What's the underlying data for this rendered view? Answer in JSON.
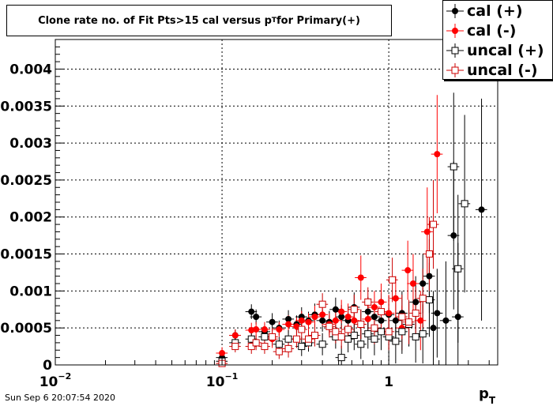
{
  "chart_data": {
    "type": "scatter",
    "title": "Clone rate no. of Fit Pts>15 cal versus p",
    "title_sub": "T",
    "title_tail": " for Primary(+)",
    "xlabel": "p",
    "xlabel_sub": "T",
    "x_scale": "log",
    "xlim": [
      0.01,
      4.5
    ],
    "ylim": [
      0,
      0.0044
    ],
    "grid": true,
    "legend_placement": "top-right",
    "x_tick_labels": [
      {
        "value": 0.01,
        "base": "10",
        "exp": "−2"
      },
      {
        "value": 0.1,
        "base": "10",
        "exp": "−1"
      },
      {
        "value": 1,
        "base": "1",
        "exp": ""
      }
    ],
    "y_tick_labels": [
      {
        "value": 0,
        "label": "0"
      },
      {
        "value": 0.0005,
        "label": "0.0005"
      },
      {
        "value": 0.001,
        "label": "0.001"
      },
      {
        "value": 0.0015,
        "label": "0.0015"
      },
      {
        "value": 0.002,
        "label": "0.002"
      },
      {
        "value": 0.0025,
        "label": "0.0025"
      },
      {
        "value": 0.003,
        "label": "0.003"
      },
      {
        "value": 0.0035,
        "label": "0.0035"
      },
      {
        "value": 0.004,
        "label": "0.004"
      }
    ],
    "series": [
      {
        "name": "cal (+)",
        "color": "#000000",
        "marker": "filled-circle",
        "points": [
          [
            0.1,
            0.0001,
            8e-05
          ],
          [
            0.12,
            0.0004,
            8e-05
          ],
          [
            0.15,
            0.00072,
            0.0001
          ],
          [
            0.16,
            0.00065,
            0.0001
          ],
          [
            0.18,
            0.00045,
            0.0001
          ],
          [
            0.2,
            0.00058,
            0.00012
          ],
          [
            0.22,
            0.0005,
            0.0001
          ],
          [
            0.25,
            0.00062,
            0.00012
          ],
          [
            0.28,
            0.00055,
            0.00012
          ],
          [
            0.3,
            0.00065,
            0.00013
          ],
          [
            0.33,
            0.0006,
            0.00012
          ],
          [
            0.36,
            0.00068,
            0.00015
          ],
          [
            0.4,
            0.0006,
            0.00015
          ],
          [
            0.44,
            0.00058,
            0.00015
          ],
          [
            0.48,
            0.00075,
            0.00016
          ],
          [
            0.52,
            0.00065,
            0.00016
          ],
          [
            0.57,
            0.0006,
            0.00018
          ],
          [
            0.62,
            0.00078,
            0.0002
          ],
          [
            0.68,
            0.00055,
            0.0002
          ],
          [
            0.75,
            0.00072,
            0.0002
          ],
          [
            0.82,
            0.00065,
            0.00022
          ],
          [
            0.9,
            0.0006,
            0.00025
          ],
          [
            1.0,
            0.00068,
            0.00025
          ],
          [
            1.1,
            0.0006,
            0.00028
          ],
          [
            1.2,
            0.0007,
            0.0003
          ],
          [
            1.32,
            0.00055,
            0.0003
          ],
          [
            1.45,
            0.00085,
            0.00035
          ],
          [
            1.6,
            0.0011,
            0.0004
          ],
          [
            1.75,
            0.0012,
            0.0005
          ],
          [
            1.85,
            0.0005,
            0.0005
          ],
          [
            1.95,
            0.0007,
            0.0006
          ],
          [
            2.2,
            0.0006,
            0.0008
          ],
          [
            2.45,
            0.00175,
            0.001
          ],
          [
            2.6,
            0.00065,
            0.001
          ],
          [
            3.6,
            0.0021,
            0.0015
          ]
        ]
      },
      {
        "name": "cal (-)",
        "color": "#ff0000",
        "marker": "filled-circle",
        "points": [
          [
            0.1,
            0.00016,
            8e-05
          ],
          [
            0.12,
            0.0004,
            8e-05
          ],
          [
            0.15,
            0.00047,
            0.0001
          ],
          [
            0.16,
            0.00048,
            0.0001
          ],
          [
            0.18,
            0.00048,
            0.0001
          ],
          [
            0.2,
            0.00035,
            0.00012
          ],
          [
            0.22,
            0.00048,
            0.0001
          ],
          [
            0.25,
            0.00055,
            0.00012
          ],
          [
            0.28,
            0.00052,
            0.00012
          ],
          [
            0.3,
            0.0006,
            0.00013
          ],
          [
            0.33,
            0.00058,
            0.00012
          ],
          [
            0.36,
            0.00065,
            0.00015
          ],
          [
            0.4,
            0.00068,
            0.00015
          ],
          [
            0.44,
            0.00055,
            0.00015
          ],
          [
            0.48,
            0.0006,
            0.00016
          ],
          [
            0.52,
            0.00072,
            0.00016
          ],
          [
            0.57,
            0.00065,
            0.00018
          ],
          [
            0.62,
            0.0006,
            0.0002
          ],
          [
            0.68,
            0.00118,
            0.0003
          ],
          [
            0.75,
            0.00062,
            0.0002
          ],
          [
            0.82,
            0.00078,
            0.00022
          ],
          [
            0.9,
            0.00085,
            0.00025
          ],
          [
            1.0,
            0.0007,
            0.00025
          ],
          [
            1.1,
            0.0009,
            0.0003
          ],
          [
            1.2,
            0.0005,
            0.0003
          ],
          [
            1.3,
            0.00128,
            0.0004
          ],
          [
            1.4,
            0.0011,
            0.0004
          ],
          [
            1.55,
            0.0006,
            0.0004
          ],
          [
            1.7,
            0.0018,
            0.0006
          ],
          [
            1.95,
            0.00285,
            0.0008
          ]
        ]
      },
      {
        "name": "uncal (+)",
        "color": "#000000",
        "marker": "open-square",
        "points": [
          [
            0.1,
            5e-05,
            8e-05
          ],
          [
            0.12,
            0.0003,
            8e-05
          ],
          [
            0.15,
            0.00035,
            0.0001
          ],
          [
            0.18,
            0.00038,
            0.0001
          ],
          [
            0.22,
            0.00028,
            0.0001
          ],
          [
            0.25,
            0.00035,
            0.00012
          ],
          [
            0.3,
            0.00025,
            0.00013
          ],
          [
            0.33,
            0.0003,
            0.00012
          ],
          [
            0.4,
            0.00028,
            0.00015
          ],
          [
            0.48,
            0.00038,
            0.00016
          ],
          [
            0.52,
            0.0001,
            0.00016
          ],
          [
            0.57,
            0.00035,
            0.00018
          ],
          [
            0.62,
            0.0004,
            0.0002
          ],
          [
            0.68,
            0.00028,
            0.0002
          ],
          [
            0.75,
            0.00042,
            0.0002
          ],
          [
            0.82,
            0.00035,
            0.00022
          ],
          [
            0.9,
            0.00045,
            0.00025
          ],
          [
            1.0,
            0.00038,
            0.00025
          ],
          [
            1.1,
            0.00032,
            0.0003
          ],
          [
            1.2,
            0.00045,
            0.0003
          ],
          [
            1.32,
            0.00055,
            0.0003
          ],
          [
            1.45,
            0.00038,
            0.00035
          ],
          [
            1.6,
            0.00042,
            0.0004
          ],
          [
            1.75,
            0.00088,
            0.0005
          ],
          [
            2.45,
            0.00268,
            0.001
          ],
          [
            2.6,
            0.0013,
            0.001
          ],
          [
            2.85,
            0.00218,
            0.0012
          ]
        ]
      },
      {
        "name": "uncal (-)",
        "color": "#cc0000",
        "marker": "open-square",
        "points": [
          [
            0.1,
            2e-05,
            8e-05
          ],
          [
            0.12,
            0.00025,
            8e-05
          ],
          [
            0.15,
            0.00025,
            0.0001
          ],
          [
            0.16,
            0.0003,
            0.0001
          ],
          [
            0.18,
            0.00025,
            0.0001
          ],
          [
            0.2,
            0.00038,
            0.00012
          ],
          [
            0.22,
            0.00018,
            0.0001
          ],
          [
            0.25,
            0.00022,
            0.00012
          ],
          [
            0.28,
            0.00035,
            0.00012
          ],
          [
            0.3,
            0.00048,
            0.00013
          ],
          [
            0.33,
            0.00035,
            0.00012
          ],
          [
            0.36,
            0.0004,
            0.00015
          ],
          [
            0.4,
            0.00082,
            0.00015
          ],
          [
            0.44,
            0.00052,
            0.00015
          ],
          [
            0.48,
            0.00045,
            0.00016
          ],
          [
            0.52,
            0.00038,
            0.00016
          ],
          [
            0.57,
            0.00048,
            0.00018
          ],
          [
            0.62,
            0.00075,
            0.0002
          ],
          [
            0.68,
            0.00055,
            0.0002
          ],
          [
            0.75,
            0.00085,
            0.0002
          ],
          [
            0.82,
            0.0005,
            0.00022
          ],
          [
            0.9,
            0.00072,
            0.00025
          ],
          [
            1.0,
            0.00045,
            0.00025
          ],
          [
            1.05,
            0.00115,
            0.0003
          ],
          [
            1.2,
            0.00065,
            0.0003
          ],
          [
            1.32,
            0.00058,
            0.0003
          ],
          [
            1.45,
            0.0007,
            0.00035
          ],
          [
            1.6,
            0.0009,
            0.0004
          ],
          [
            1.75,
            0.0015,
            0.0005
          ],
          [
            1.85,
            0.0019,
            0.0006
          ]
        ]
      }
    ]
  },
  "footer": {
    "timestamp": "Sun Sep  6 20:07:54 2020"
  }
}
